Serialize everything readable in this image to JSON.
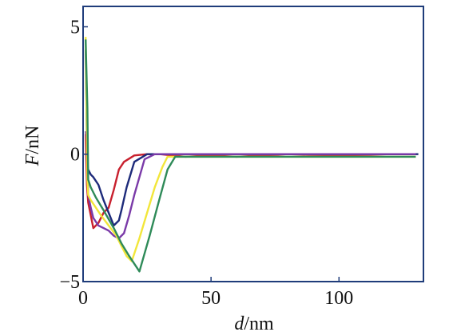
{
  "chart_data": {
    "type": "line",
    "xlabel_var": "d",
    "xlabel_unit": "/nm",
    "ylabel_var": "F",
    "ylabel_unit": "/nN",
    "xlim": [
      0,
      133
    ],
    "ylim": [
      -5,
      5.8
    ],
    "x_ticks": [
      0,
      50,
      100
    ],
    "y_ticks": [
      -5,
      0,
      5
    ],
    "x_tick_labels": [
      "0",
      "50",
      "100"
    ],
    "y_tick_labels": [
      "−5",
      "0",
      "5"
    ],
    "frame_color": "#1f3c7a",
    "grid": false,
    "legend": "none",
    "series": [
      {
        "color": "#c8202e",
        "x": [
          1,
          1.5,
          2,
          3,
          4,
          6,
          8,
          10,
          12,
          14,
          16,
          20,
          25,
          30,
          40,
          50,
          60,
          80,
          100,
          120,
          130
        ],
        "y": [
          0.8,
          -1.2,
          -1.9,
          -2.4,
          -2.9,
          -2.7,
          -2.3,
          -2.1,
          -1.4,
          -0.6,
          -0.3,
          -0.05,
          0,
          0,
          -0.1,
          -0.05,
          -0.1,
          0,
          -0.05,
          0,
          0
        ]
      },
      {
        "color": "#1d2a7a",
        "x": [
          1,
          1.6,
          2,
          3,
          4,
          6,
          8,
          10,
          12,
          14,
          15,
          17,
          20,
          25,
          30,
          40,
          60,
          80,
          100,
          120,
          131
        ],
        "y": [
          4.1,
          -0.3,
          -0.6,
          -0.8,
          -0.9,
          -1.2,
          -1.8,
          -2.3,
          -2.8,
          -2.6,
          -2.2,
          -1.3,
          -0.3,
          0,
          0,
          0,
          0,
          0,
          0,
          0,
          0
        ]
      },
      {
        "color": "#7a3aa8",
        "x": [
          1,
          1.6,
          2,
          3,
          4,
          6,
          8,
          10,
          12,
          14,
          16,
          18,
          20,
          22,
          24,
          26,
          28,
          35,
          50,
          80,
          100,
          130
        ],
        "y": [
          0.9,
          0.4,
          -1.6,
          -2.1,
          -2.5,
          -2.8,
          -2.9,
          -3.0,
          -3.2,
          -3.3,
          -3.1,
          -2.4,
          -1.6,
          -0.9,
          -0.2,
          -0.1,
          0,
          0,
          0,
          0,
          0,
          0
        ]
      },
      {
        "color": "#f2e63a",
        "x": [
          1,
          1.7,
          2,
          3,
          5,
          7,
          10,
          13,
          15,
          17,
          19,
          22,
          25,
          28,
          31,
          33,
          40,
          60,
          80,
          100,
          130
        ],
        "y": [
          4.6,
          -1.0,
          -1.6,
          -1.8,
          -2.1,
          -2.4,
          -2.8,
          -3.2,
          -3.6,
          -4.0,
          -4.2,
          -3.3,
          -2.3,
          -1.3,
          -0.5,
          -0.1,
          -0.1,
          -0.1,
          -0.1,
          -0.1,
          -0.1
        ]
      },
      {
        "color": "#2e8a58",
        "x": [
          1,
          1.7,
          2,
          3,
          5,
          8,
          12,
          15,
          18,
          20,
          22,
          26,
          30,
          33,
          36,
          50,
          80,
          100,
          130
        ],
        "y": [
          4.5,
          1.8,
          -1.0,
          -1.3,
          -1.7,
          -2.2,
          -2.9,
          -3.5,
          -4.0,
          -4.3,
          -4.6,
          -3.2,
          -1.7,
          -0.6,
          -0.1,
          -0.1,
          -0.1,
          -0.1,
          -0.1
        ]
      }
    ]
  }
}
